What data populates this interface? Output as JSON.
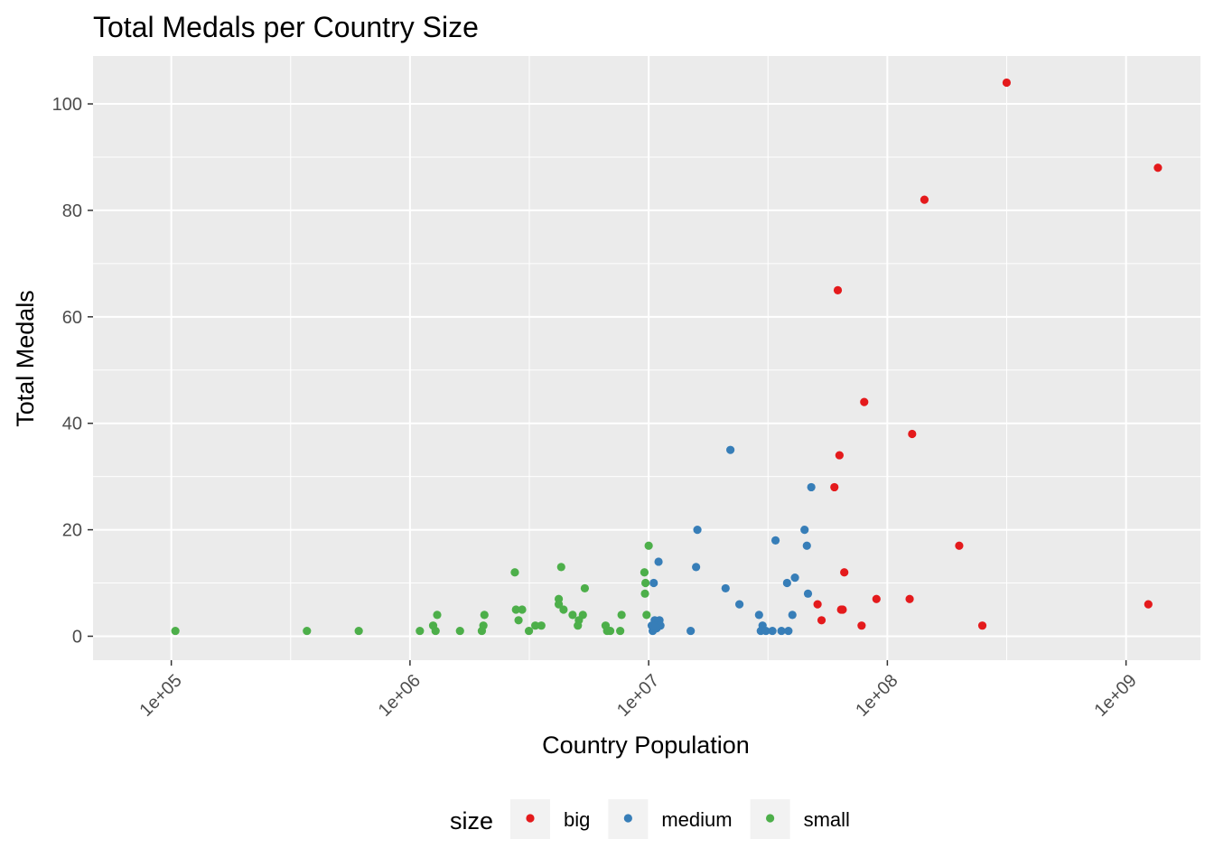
{
  "chart_data": {
    "type": "scatter",
    "title": "Total Medals per Country Size",
    "xlabel": "Country Population",
    "ylabel": "Total Medals",
    "x_scale": "log10",
    "xlim": [
      47000,
      2050000000
    ],
    "ylim": [
      -4.5,
      109
    ],
    "x_ticks": [
      {
        "value": 100000,
        "label": "1e+05"
      },
      {
        "value": 1000000,
        "label": "1e+06"
      },
      {
        "value": 10000000,
        "label": "1e+07"
      },
      {
        "value": 100000000,
        "label": "1e+08"
      },
      {
        "value": 1000000000,
        "label": "1e+09"
      }
    ],
    "y_ticks": [
      {
        "value": 0,
        "label": "0"
      },
      {
        "value": 20,
        "label": "20"
      },
      {
        "value": 40,
        "label": "40"
      },
      {
        "value": 60,
        "label": "60"
      },
      {
        "value": 80,
        "label": "80"
      },
      {
        "value": 100,
        "label": "100"
      }
    ],
    "grid": true,
    "legend": {
      "title": "size",
      "position": "bottom"
    },
    "series": [
      {
        "name": "big",
        "color": "#E41A1C",
        "points": [
          [
            316000000,
            104
          ],
          [
            1360000000,
            88
          ],
          [
            143000000,
            82
          ],
          [
            62000000,
            65
          ],
          [
            80000000,
            44
          ],
          [
            127000000,
            38
          ],
          [
            63000000,
            34
          ],
          [
            60000000,
            28
          ],
          [
            200000000,
            17
          ],
          [
            66000000,
            12
          ],
          [
            51000000,
            6
          ],
          [
            90000000,
            7
          ],
          [
            124000000,
            7
          ],
          [
            1240000000,
            6
          ],
          [
            65000000,
            5
          ],
          [
            64000000,
            5
          ],
          [
            53000000,
            3
          ],
          [
            78000000,
            2
          ],
          [
            250000000,
            2
          ]
        ]
      },
      {
        "name": "medium",
        "color": "#377EB8",
        "points": [
          [
            22000000,
            35
          ],
          [
            48000000,
            28
          ],
          [
            16000000,
            20
          ],
          [
            45000000,
            20
          ],
          [
            34000000,
            18
          ],
          [
            46000000,
            17
          ],
          [
            11000000,
            14
          ],
          [
            15800000,
            13
          ],
          [
            41000000,
            11
          ],
          [
            38000000,
            10
          ],
          [
            10500000,
            10
          ],
          [
            21000000,
            9
          ],
          [
            46500000,
            8
          ],
          [
            24000000,
            6
          ],
          [
            29000000,
            4
          ],
          [
            40000000,
            4
          ],
          [
            10600000,
            3
          ],
          [
            11100000,
            3
          ],
          [
            10900000,
            2.5
          ],
          [
            10300000,
            2
          ],
          [
            10700000,
            2
          ],
          [
            11200000,
            2
          ],
          [
            30000000,
            2
          ],
          [
            10400000,
            1
          ],
          [
            10800000,
            1.5
          ],
          [
            15000000,
            1
          ],
          [
            29500000,
            1
          ],
          [
            31000000,
            1
          ],
          [
            33000000,
            1
          ],
          [
            36000000,
            1
          ],
          [
            38500000,
            1
          ],
          [
            10400000,
            2
          ]
        ]
      },
      {
        "name": "small",
        "color": "#4DAF4A",
        "points": [
          [
            104000,
            1
          ],
          [
            370000,
            1
          ],
          [
            610000,
            1
          ],
          [
            1100000,
            1
          ],
          [
            1300000,
            4
          ],
          [
            1250000,
            2
          ],
          [
            1280000,
            1
          ],
          [
            1620000,
            1
          ],
          [
            2000000,
            1
          ],
          [
            2050000,
            4
          ],
          [
            2030000,
            2
          ],
          [
            2750000,
            12
          ],
          [
            2780000,
            5
          ],
          [
            2950000,
            5
          ],
          [
            2850000,
            3
          ],
          [
            3150000,
            1
          ],
          [
            3350000,
            2
          ],
          [
            3550000,
            2
          ],
          [
            4300000,
            13
          ],
          [
            4200000,
            7
          ],
          [
            4200000,
            6
          ],
          [
            4400000,
            5
          ],
          [
            4800000,
            4
          ],
          [
            5300000,
            4
          ],
          [
            5100000,
            3
          ],
          [
            5050000,
            2
          ],
          [
            5400000,
            9
          ],
          [
            6900000,
            1
          ],
          [
            6600000,
            2
          ],
          [
            6700000,
            1
          ],
          [
            7700000,
            4
          ],
          [
            7600000,
            1
          ],
          [
            9600000,
            12
          ],
          [
            9700000,
            10
          ],
          [
            9650000,
            8
          ],
          [
            9800000,
            4
          ],
          [
            10000000,
            17
          ]
        ]
      }
    ]
  }
}
